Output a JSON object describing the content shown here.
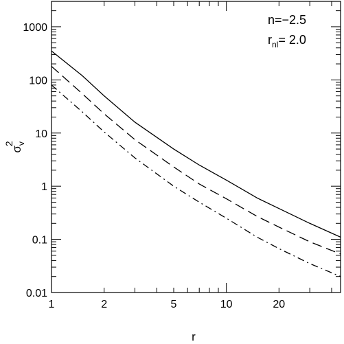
{
  "chart_data": {
    "type": "line",
    "xlabel": "r",
    "ylabel": "σ_v^2",
    "ylabel_base": "σ",
    "ylabel_sub": "v",
    "ylabel_sup": "2",
    "x_scale": "log",
    "y_scale": "log",
    "xlim": [
      1,
      45
    ],
    "ylim": [
      0.01,
      3000
    ],
    "x_ticks": [
      1,
      2,
      5,
      10,
      20
    ],
    "x_tick_labels": [
      "1",
      "2",
      "5",
      "10",
      "20"
    ],
    "y_ticks": [
      0.01,
      0.1,
      1,
      10,
      100,
      1000
    ],
    "y_tick_labels": [
      "0.01",
      "0.1",
      "1",
      "10",
      "100",
      "1000"
    ],
    "grid": false,
    "legend": "none",
    "annotations": {
      "line1": "n=−2.5",
      "line2_base": "r",
      "line2_sub": "nl",
      "line2_rest": "=  2.0"
    },
    "series": [
      {
        "style": "solid",
        "x": [
          1,
          1.5,
          2,
          3,
          5,
          7,
          10,
          15,
          20,
          30,
          45
        ],
        "y": [
          350,
          120,
          50,
          16,
          5,
          2.5,
          1.3,
          0.6,
          0.38,
          0.2,
          0.11
        ]
      },
      {
        "style": "dashed",
        "x": [
          1,
          1.5,
          2,
          3,
          5,
          7,
          10,
          15,
          20,
          30,
          45
        ],
        "y": [
          180,
          55,
          23,
          7.5,
          2.3,
          1.1,
          0.58,
          0.27,
          0.17,
          0.09,
          0.053
        ]
      },
      {
        "style": "dashdot",
        "x": [
          1,
          1.5,
          2,
          3,
          5,
          7,
          10,
          15,
          20,
          30,
          45
        ],
        "y": [
          80,
          25,
          10.5,
          3.4,
          1.0,
          0.5,
          0.25,
          0.11,
          0.067,
          0.035,
          0.02
        ]
      }
    ]
  }
}
